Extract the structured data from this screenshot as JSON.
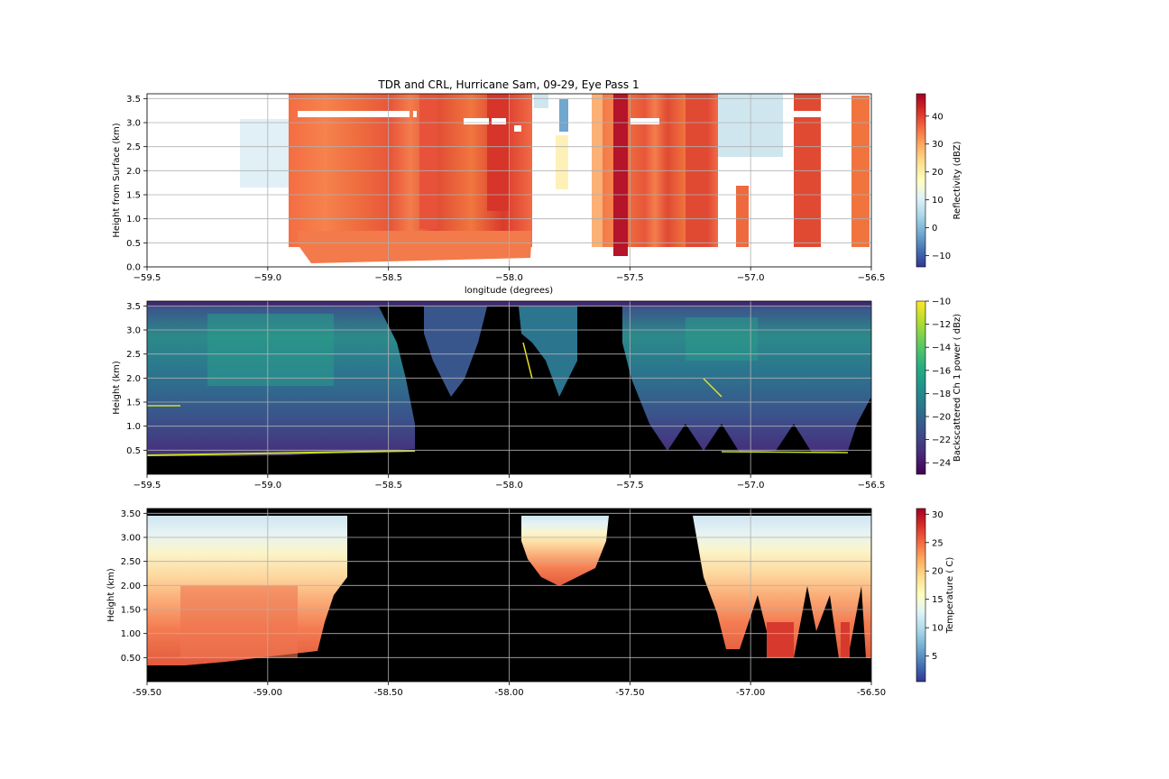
{
  "chart_data": [
    {
      "type": "heatmap",
      "title": "TDR and CRL, Hurricane Sam, 09-29, Eye Pass 1",
      "xlabel": "longitude (degrees)",
      "ylabel": "Height from Surface (km)",
      "xlim": [
        -59.5,
        -56.5
      ],
      "ylim": [
        0.0,
        3.6
      ],
      "xticks": [
        "−59.5",
        "−59.0",
        "−58.5",
        "−58.0",
        "−57.5",
        "−57.0",
        "−56.5"
      ],
      "yticks": [
        "0.0",
        "0.5",
        "1.0",
        "1.5",
        "2.0",
        "2.5",
        "3.0",
        "3.5"
      ],
      "grid": true,
      "colorbar": {
        "label": "Reflectivity (dBZ)",
        "range": [
          -14,
          48
        ],
        "ticks": [
          "−10",
          "0",
          "10",
          "20",
          "30",
          "40"
        ],
        "colormap": "RdYlBu_r"
      }
    },
    {
      "type": "heatmap",
      "title": "",
      "xlabel": "",
      "ylabel": "Height (km)",
      "xlim": [
        -59.5,
        -56.5
      ],
      "ylim": [
        0.0,
        3.6
      ],
      "xticks": [
        "−59.5",
        "−59.0",
        "−58.5",
        "−58.0",
        "−57.5",
        "−57.0",
        "−56.5"
      ],
      "yticks": [
        "0.5",
        "1.0",
        "1.5",
        "2.0",
        "2.5",
        "3.0",
        "3.5"
      ],
      "grid": true,
      "colorbar": {
        "label": "Backscattered Ch 1 power ( dBz)",
        "range": [
          -25,
          -10
        ],
        "ticks": [
          "−24",
          "−22",
          "−20",
          "−18",
          "−16",
          "−14",
          "−12",
          "−10"
        ],
        "colormap": "viridis"
      }
    },
    {
      "type": "heatmap",
      "title": "",
      "xlabel": "",
      "ylabel": "Height (km)",
      "xlim": [
        -59.5,
        -56.5
      ],
      "ylim": [
        0.0,
        3.6
      ],
      "xticks": [
        "-59.50",
        "-59.00",
        "-58.50",
        "-58.00",
        "-57.50",
        "-57.00",
        "-56.50"
      ],
      "yticks": [
        "0.50",
        "1.00",
        "1.50",
        "2.00",
        "2.50",
        "3.00",
        "3.50"
      ],
      "grid": true,
      "colorbar": {
        "label": "Temperature ( C)",
        "range": [
          0.5,
          31
        ],
        "ticks": [
          "5",
          "10",
          "15",
          "20",
          "25",
          "30"
        ],
        "colormap": "RdYlBu_r"
      }
    }
  ]
}
